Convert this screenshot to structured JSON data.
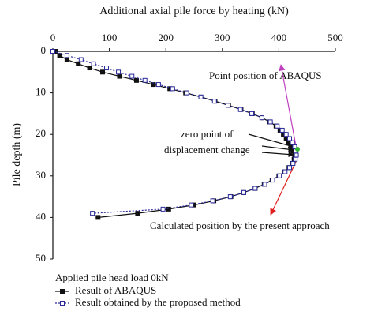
{
  "chart_data": {
    "type": "line",
    "x_label": "Additional axial pile force by heating (kN)",
    "y_label": "Pile depth (m)",
    "xlim": [
      0,
      500
    ],
    "xticks": [
      0,
      100,
      200,
      300,
      400,
      500
    ],
    "ylim": [
      0,
      50
    ],
    "yticks": [
      0,
      10,
      20,
      30,
      40,
      50
    ],
    "y_inverted": true,
    "legend_title": "Applied pile head load 0kN",
    "annotations": [
      "Point position of ABAQUS",
      "zero point of",
      "displacement change",
      "Calculated position by the present approach"
    ],
    "series": [
      {
        "name": "Result of ABAQUS",
        "color": "#111111",
        "marker": "filled-square",
        "x": [
          5,
          12,
          25,
          45,
          65,
          88,
          118,
          148,
          178,
          207,
          235,
          262,
          287,
          311,
          333,
          353,
          370,
          384,
          395,
          402,
          408,
          413,
          417,
          421,
          425,
          428,
          427,
          424,
          418,
          410,
          400,
          388,
          374,
          358,
          338,
          315,
          285,
          250,
          205,
          150,
          80
        ],
        "y": [
          0,
          1,
          2,
          3,
          4,
          5,
          6,
          7,
          8,
          9,
          10,
          11,
          12,
          13,
          14,
          15,
          16,
          17,
          18,
          19,
          20,
          21,
          22,
          23,
          24,
          25,
          26,
          27,
          28,
          29,
          30,
          31,
          32,
          33,
          34,
          35,
          36,
          37,
          38,
          39,
          40
        ]
      },
      {
        "name": "Result obtained by the proposed method",
        "color": "#2a2a9a",
        "marker": "open-square",
        "dash": true,
        "x": [
          0,
          25,
          50,
          72,
          95,
          116,
          140,
          163,
          187,
          212,
          237,
          262,
          286,
          310,
          332,
          352,
          370,
          385,
          397,
          406,
          413,
          419,
          424,
          428,
          430,
          431,
          429,
          425,
          419,
          411,
          401,
          389,
          375,
          358,
          338,
          314,
          283,
          245,
          195,
          70
        ],
        "y": [
          0,
          1,
          2,
          3,
          4,
          5,
          6,
          7,
          8,
          9,
          10,
          11,
          12,
          13,
          14,
          15,
          16,
          17,
          18,
          19,
          20,
          21,
          22,
          23,
          24,
          25,
          26,
          27,
          28,
          29,
          30,
          31,
          32,
          33,
          34,
          35,
          36,
          37,
          38,
          39
        ]
      }
    ]
  }
}
